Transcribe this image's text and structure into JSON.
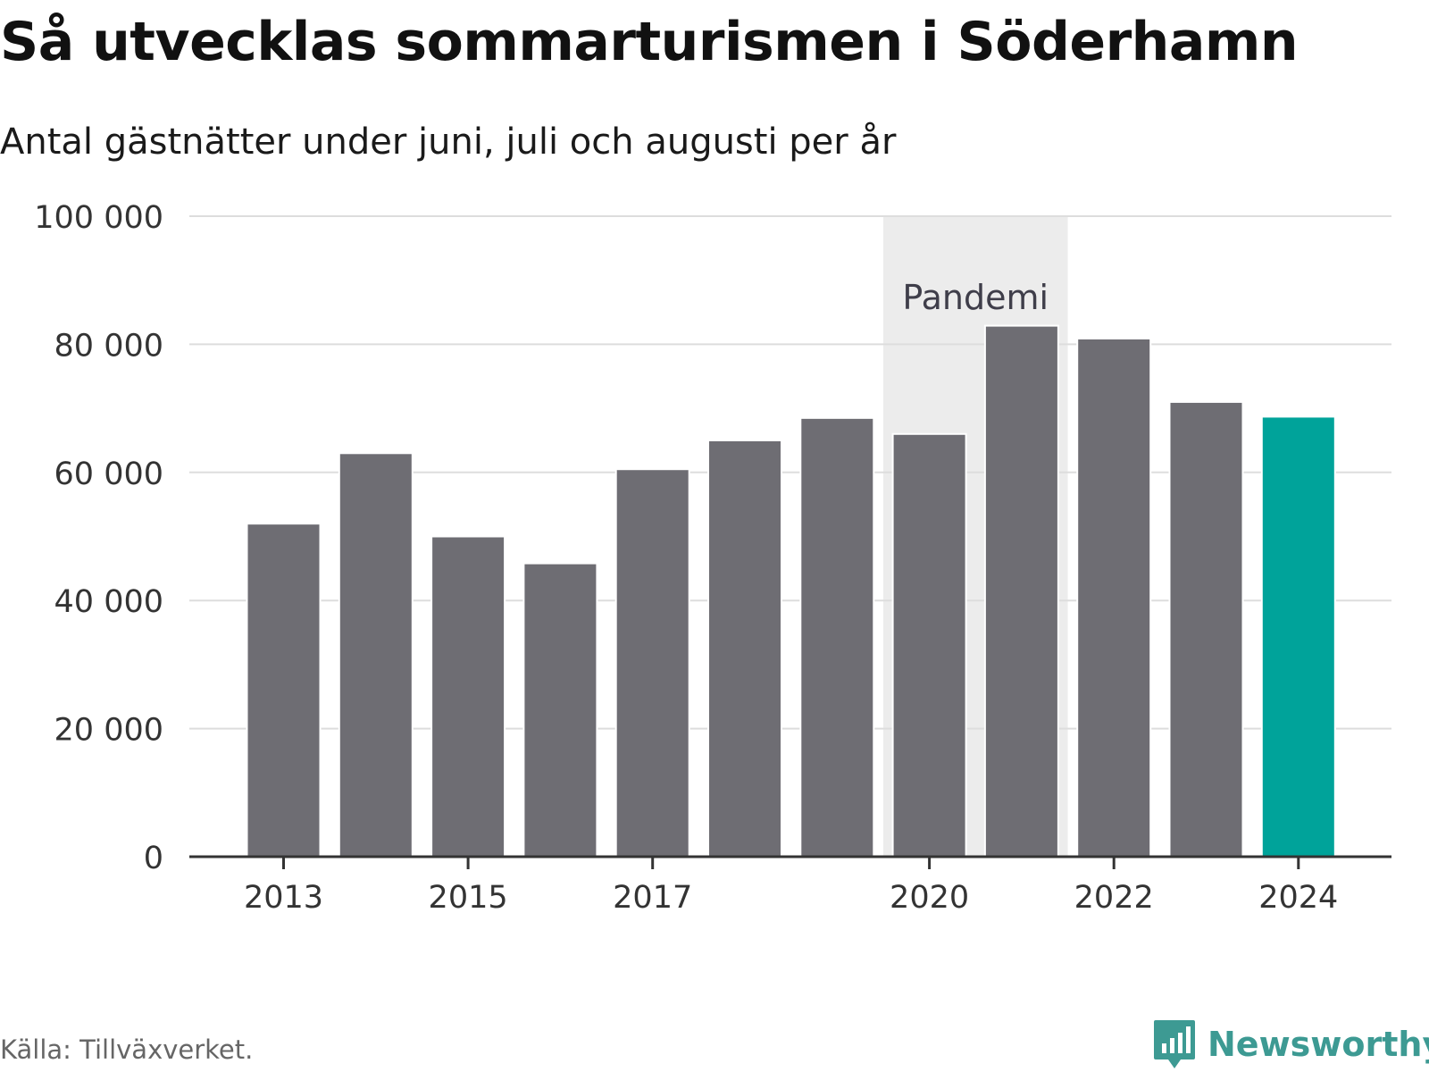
{
  "header": {
    "title": "Så utvecklas sommarturismen i Söderhamn",
    "subtitle": "Antal gästnätter under juni, juli och augusti per år"
  },
  "footer": {
    "source": "Källa: Tillväxverket.",
    "brand": "Newsworthy"
  },
  "colors": {
    "bar": "#6e6d73",
    "highlight": "#00a39a",
    "band": "#ececec",
    "grid": "#dddddd",
    "axis": "#333333",
    "brand": "#3d9a93"
  },
  "chart_data": {
    "type": "bar",
    "categories": [
      "2013",
      "2014",
      "2015",
      "2016",
      "2017",
      "2018",
      "2019",
      "2020",
      "2021",
      "2022",
      "2023",
      "2024"
    ],
    "values": [
      52000,
      63000,
      50000,
      45800,
      60500,
      65000,
      68500,
      66000,
      82900,
      80900,
      71000,
      68700
    ],
    "highlight_category": "2024",
    "x_tick_labels": [
      "2013",
      "2015",
      "2017",
      "2020",
      "2022",
      "2024"
    ],
    "y_tick_values": [
      0,
      20000,
      40000,
      60000,
      80000,
      100000
    ],
    "y_tick_labels": [
      "0",
      "20 000",
      "40 000",
      "60 000",
      "80 000",
      "100 000"
    ],
    "ylim": [
      0,
      100000
    ],
    "grid": true,
    "shaded_period": {
      "label": "Pandemi",
      "from": "2020",
      "to": "2021"
    }
  }
}
